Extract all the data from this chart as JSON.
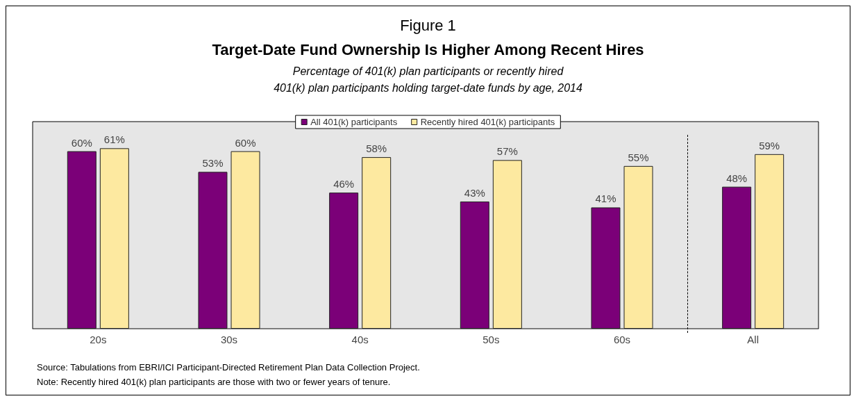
{
  "chart_data": {
    "type": "bar",
    "title": "Target-Date Fund Ownership Is Higher Among Recent Hires",
    "subtitle": "Percentage of 401(k) plan participants or recently hired\n401(k) plan participants holding target-date funds by age, 2014",
    "annotations": [
      "Figure 1",
      "Source: Tabulations from EBRI/ICI Participant-Directed Retirement Plan Data Collection Project.",
      "Note: Recently hired 401(k) plan participants are those with two or fewer years of tenure."
    ],
    "categories": [
      "20s",
      "30s",
      "40s",
      "50s",
      "60s",
      "All"
    ],
    "series": [
      {
        "name": "All 401(k) participants",
        "color": "#7b0078",
        "values": [
          60,
          53,
          46,
          43,
          41,
          48
        ],
        "value_labels": [
          "60%",
          "53%",
          "46%",
          "43%",
          "41%",
          "48%"
        ]
      },
      {
        "name": "Recently hired 401(k) participants",
        "color": "#fde9a0",
        "values": [
          61,
          60,
          58,
          57,
          55,
          59
        ],
        "value_labels": [
          "61%",
          "60%",
          "58%",
          "57%",
          "55%",
          "59%"
        ]
      }
    ],
    "legend": "top",
    "tick_labels": "x"
  }
}
